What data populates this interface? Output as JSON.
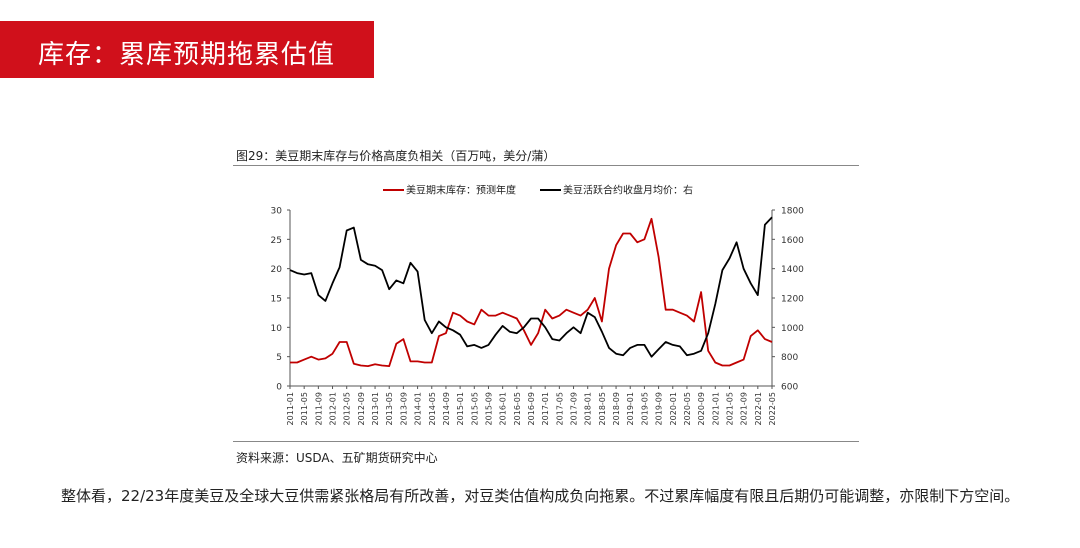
{
  "header": {
    "title": "库存：累库预期拖累估值"
  },
  "figure": {
    "title": "图29：美豆期末库存与价格高度负相关（百万吨，美分/蒲）",
    "source": "资料来源：USDA、五矿期货研究中心"
  },
  "body": {
    "paragraph": "整体看，22/23年度美豆及全球大豆供需紧张格局有所改善，对豆类估值构成负向拖累。不过累库幅度有限且后期仍可能调整，亦限制下方空间。"
  },
  "colors": {
    "brand": "#d0101b",
    "stocks": "#c00000",
    "price": "#000000"
  },
  "chart_data": {
    "type": "line",
    "x": [
      "2011-01",
      "2011-03",
      "2011-05",
      "2011-07",
      "2011-09",
      "2011-11",
      "2012-01",
      "2012-03",
      "2012-05",
      "2012-07",
      "2012-09",
      "2012-11",
      "2013-01",
      "2013-03",
      "2013-05",
      "2013-07",
      "2013-09",
      "2013-11",
      "2014-01",
      "2014-03",
      "2014-05",
      "2014-07",
      "2014-09",
      "2014-11",
      "2015-01",
      "2015-03",
      "2015-05",
      "2015-07",
      "2015-09",
      "2015-11",
      "2016-01",
      "2016-03",
      "2016-05",
      "2016-07",
      "2016-09",
      "2016-11",
      "2017-01",
      "2017-03",
      "2017-05",
      "2017-07",
      "2017-09",
      "2017-11",
      "2018-01",
      "2018-03",
      "2018-05",
      "2018-07",
      "2018-09",
      "2018-11",
      "2019-01",
      "2019-03",
      "2019-05",
      "2019-07",
      "2019-09",
      "2019-11",
      "2020-01",
      "2020-03",
      "2020-05",
      "2020-07",
      "2020-09",
      "2020-11",
      "2021-01",
      "2021-03",
      "2021-05",
      "2021-07",
      "2021-09",
      "2021-11",
      "2022-01",
      "2022-03",
      "2022-05"
    ],
    "x_tick_labels": [
      "2011-01",
      "2011-05",
      "2011-09",
      "2012-01",
      "2012-05",
      "2012-09",
      "2013-01",
      "2013-05",
      "2013-09",
      "2014-01",
      "2014-05",
      "2014-09",
      "2015-01",
      "2015-05",
      "2015-09",
      "2016-01",
      "2016-05",
      "2016-09",
      "2017-01",
      "2017-05",
      "2017-09",
      "2018-01",
      "2018-05",
      "2018-09",
      "2019-01",
      "2019-05",
      "2019-09",
      "2020-01",
      "2020-05",
      "2020-09",
      "2021-01",
      "2021-05",
      "2021-09",
      "2022-01",
      "2022-05"
    ],
    "series": [
      {
        "name": "美豆期末库存：预测年度",
        "axis": "left",
        "color": "#c00000",
        "values": [
          4,
          4,
          4.5,
          5,
          4.5,
          4.7,
          5.5,
          7.5,
          7.5,
          3.8,
          3.5,
          3.4,
          3.7,
          3.5,
          3.4,
          7.2,
          8,
          4.2,
          4.2,
          4,
          4,
          8.5,
          9,
          12.5,
          12,
          11,
          10.5,
          13,
          12,
          12,
          12.5,
          12,
          11.5,
          9.5,
          7,
          9,
          13,
          11.5,
          12,
          13,
          12.5,
          12,
          13,
          15,
          11,
          20,
          24,
          26,
          26,
          24.5,
          25,
          28.5,
          22,
          13,
          13,
          12.5,
          12,
          11,
          16,
          6,
          4,
          3.5,
          3.5,
          4,
          4.5,
          8.5,
          9.5,
          8,
          7.5
        ]
      },
      {
        "name": "美豆活跃合约收盘月均价：右",
        "axis": "right",
        "color": "#000000",
        "values": [
          1390,
          1370,
          1360,
          1370,
          1220,
          1180,
          1300,
          1410,
          1660,
          1680,
          1460,
          1430,
          1420,
          1390,
          1260,
          1320,
          1300,
          1440,
          1380,
          1050,
          960,
          1040,
          1000,
          980,
          950,
          870,
          880,
          860,
          880,
          950,
          1010,
          970,
          960,
          1000,
          1060,
          1060,
          1000,
          920,
          910,
          960,
          1000,
          960,
          1100,
          1070,
          970,
          860,
          820,
          810,
          860,
          880,
          880,
          800,
          850,
          900,
          880,
          870,
          810,
          820,
          840,
          960,
          1160,
          1390,
          1470,
          1580,
          1400,
          1300,
          1220,
          1700,
          1750
        ]
      }
    ],
    "y_left": {
      "ticks": [
        0,
        5,
        10,
        15,
        20,
        25,
        30
      ],
      "lim": [
        0,
        30
      ]
    },
    "y_right": {
      "ticks": [
        600,
        800,
        1000,
        1200,
        1400,
        1600,
        1800
      ],
      "lim": [
        600,
        1800
      ]
    },
    "legend": {
      "placement": "top-center"
    },
    "grid": false
  }
}
